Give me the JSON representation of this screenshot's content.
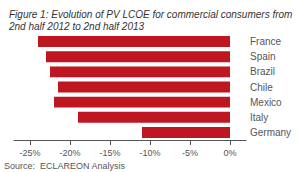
{
  "chart_data": {
    "type": "bar",
    "orientation": "horizontal",
    "title": "Figure 1: Evolution of PV LCOE for commercial consumers from 2nd half 2012 to 2nd half 2013",
    "annotations": [
      "Source:  ECLAREON Analysis"
    ],
    "categories": [
      "France",
      "Spain",
      "Brazil",
      "Chile",
      "Mexico",
      "Italy",
      "Germany"
    ],
    "values": [
      -24.0,
      -23.0,
      -22.5,
      -21.5,
      -22.0,
      -19.0,
      -11.0
    ],
    "color": "#bf1722",
    "xlim": [
      -27,
      2
    ],
    "xticks": [
      {
        "value": -25,
        "label": "-25%"
      },
      {
        "value": -20,
        "label": "-20%"
      },
      {
        "value": -15,
        "label": "-15%"
      },
      {
        "value": -10,
        "label": "-10%"
      },
      {
        "value": -5,
        "label": "-5%"
      },
      {
        "value": 0,
        "label": "0%"
      }
    ],
    "grid": false
  }
}
